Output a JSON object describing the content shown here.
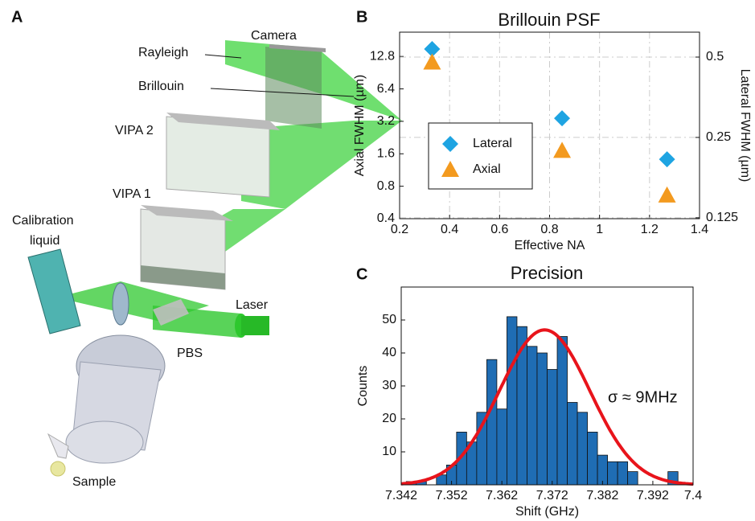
{
  "diagram": {
    "panel_label": "A",
    "camera": "Camera",
    "rayleigh": "Rayleigh",
    "brillouin": "Brillouin",
    "vipa2": "VIPA 2",
    "vipa1": "VIPA 1",
    "calibration_liquid": [
      "Calibration",
      "liquid"
    ],
    "laser": "Laser",
    "pbs": "PBS",
    "sample": "Sample"
  },
  "chart_data": [
    {
      "type": "scatter",
      "panel_label": "B",
      "title": "Brillouin PSF",
      "xlabel": "Effective NA",
      "ylabel": "Axial FWHM (µm)",
      "y2label": "Lateral FWHM (µm)",
      "xlim": [
        0.2,
        1.4
      ],
      "xticks": [
        0.2,
        0.4,
        0.6,
        0.8,
        1,
        1.2,
        1.4
      ],
      "ylim": [
        0.4,
        21.5
      ],
      "yticks": [
        0.4,
        0.8,
        1.6,
        3.2,
        6.4,
        12.8
      ],
      "yscale": "log",
      "y2lim": [
        0.124,
        0.62
      ],
      "y2ticks": [
        0.125,
        0.25,
        0.5
      ],
      "y2scale": "log",
      "grid": true,
      "legend": "center-left",
      "series": [
        {
          "name": "Lateral",
          "color": "#1ea4e2",
          "marker": "diamond",
          "axis": "y2",
          "x": [
            0.33,
            0.85,
            1.27
          ],
          "values": [
            0.536,
            0.295,
            0.207
          ]
        },
        {
          "name": "Axial",
          "color": "#f39a1f",
          "marker": "triangle",
          "x": [
            0.33,
            0.85,
            1.27
          ],
          "values": [
            11.3,
            1.71,
            0.66
          ]
        }
      ]
    },
    {
      "type": "histogram",
      "panel_label": "C",
      "title": "Precision",
      "xlabel": "Shift (GHz)",
      "ylabel": "Counts",
      "bins": [
        7.343,
        7.345,
        7.347,
        7.349,
        7.351,
        7.353,
        7.355,
        7.357,
        7.359,
        7.361,
        7.363,
        7.365,
        7.367,
        7.369,
        7.371,
        7.373,
        7.375,
        7.377,
        7.379,
        7.381,
        7.383,
        7.385,
        7.387,
        7.389,
        7.391,
        7.393,
        7.395,
        7.397
      ],
      "counts": [
        1,
        1,
        0,
        3,
        6,
        16,
        13,
        22,
        38,
        23,
        51,
        48,
        42,
        40,
        35,
        45,
        25,
        22,
        16,
        9,
        7,
        7,
        4,
        0,
        0,
        0,
        4
      ],
      "color": "#1f6db4",
      "xlim": [
        7.342,
        7.4
      ],
      "xticks": [
        7.342,
        7.352,
        7.362,
        7.372,
        7.382,
        7.392,
        7.4
      ],
      "ylim": [
        0,
        60
      ],
      "yticks": [
        10,
        20,
        30,
        40,
        50
      ],
      "fit": {
        "type": "gaussian",
        "mean": 7.3705,
        "sigma": 0.009,
        "amplitude": 47,
        "color": "#e8141b"
      },
      "annotation": "σ ≈ 9MHz"
    }
  ]
}
